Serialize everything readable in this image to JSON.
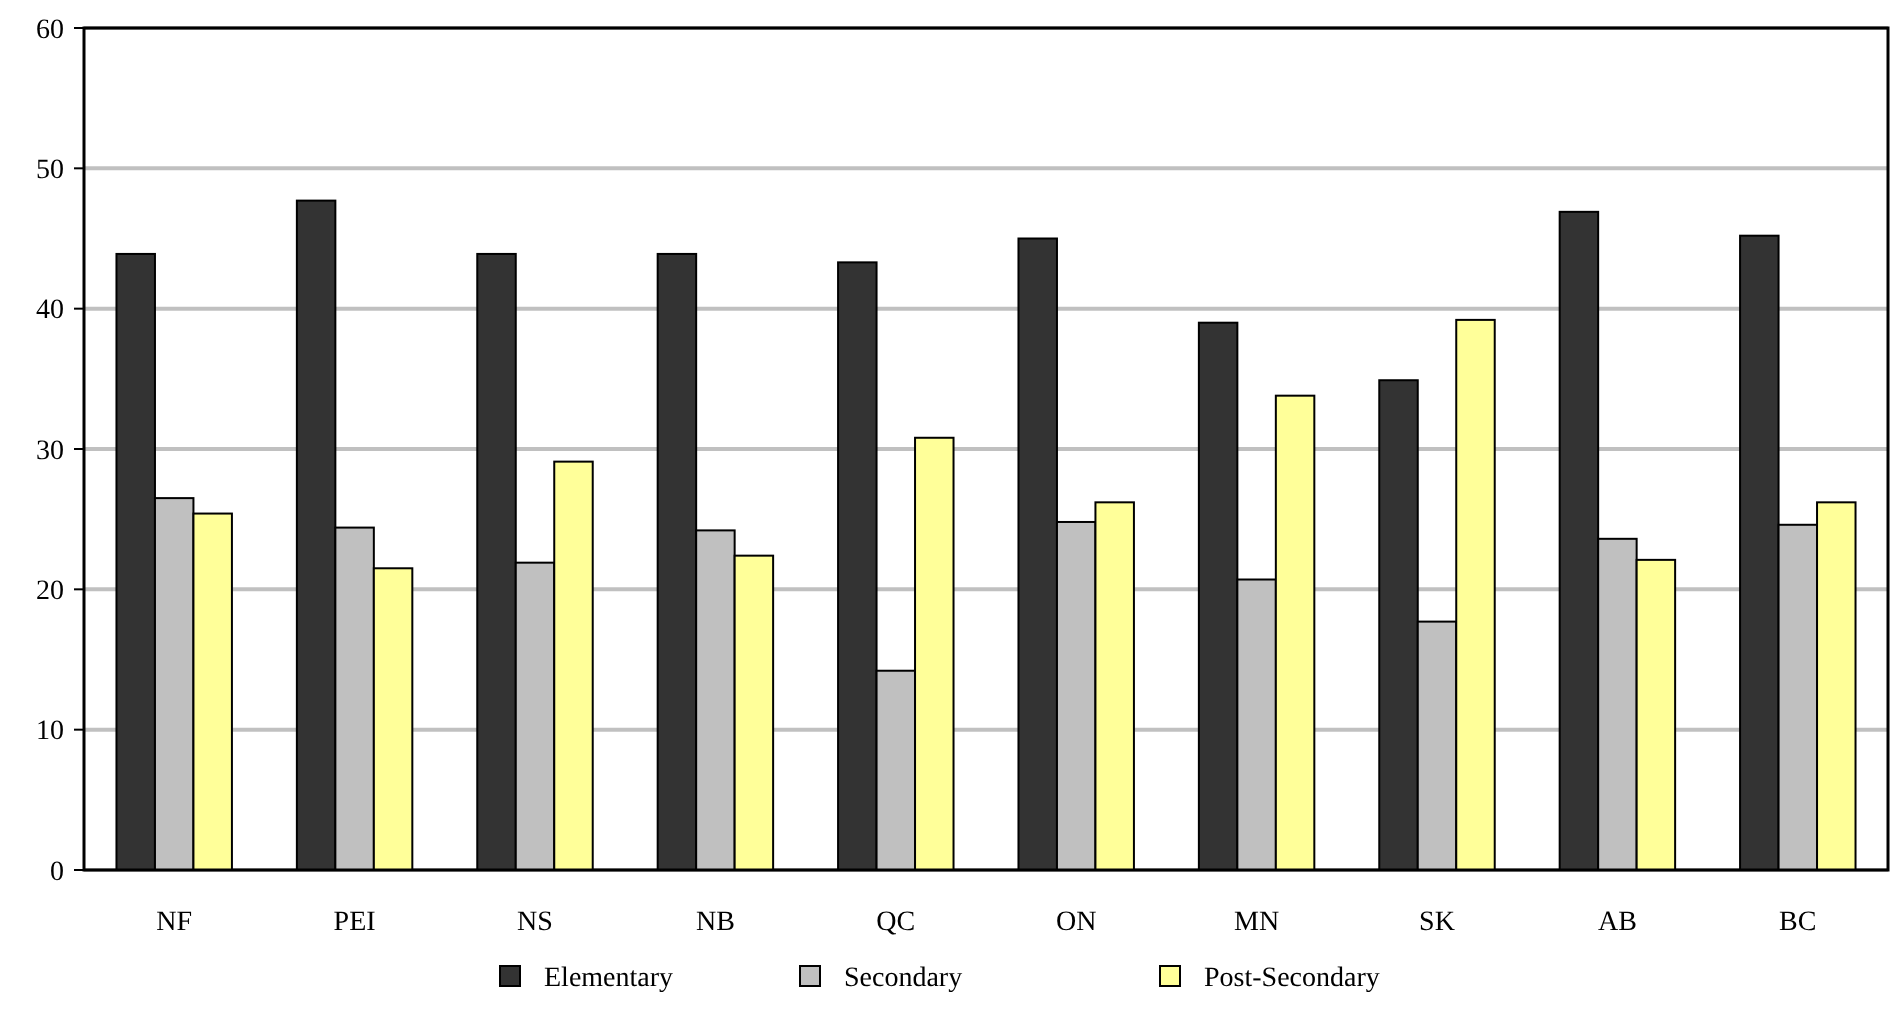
{
  "chart_data": {
    "type": "bar",
    "categories": [
      "NF",
      "PEI",
      "NS",
      "NB",
      "QC",
      "ON",
      "MN",
      "SK",
      "AB",
      "BC"
    ],
    "series": [
      {
        "name": "Elementary",
        "color": "#333333",
        "values": [
          43.9,
          47.7,
          43.9,
          43.9,
          43.3,
          45,
          39,
          34.9,
          46.9,
          45.2
        ]
      },
      {
        "name": "Secondary",
        "color": "#c0c0c0",
        "values": [
          26.5,
          24.4,
          21.9,
          24.2,
          14.2,
          24.8,
          20.7,
          17.7,
          23.6,
          24.6
        ]
      },
      {
        "name": "Post-Secondary",
        "color": "#ffff99",
        "values": [
          25.4,
          21.5,
          29.1,
          22.4,
          30.8,
          26.2,
          33.8,
          39.2,
          22.1,
          26.2
        ]
      }
    ],
    "ylim": [
      0,
      60
    ],
    "yticks": [
      0,
      10,
      20,
      30,
      40,
      50,
      60
    ],
    "grid": "y",
    "legend": "bottom"
  }
}
